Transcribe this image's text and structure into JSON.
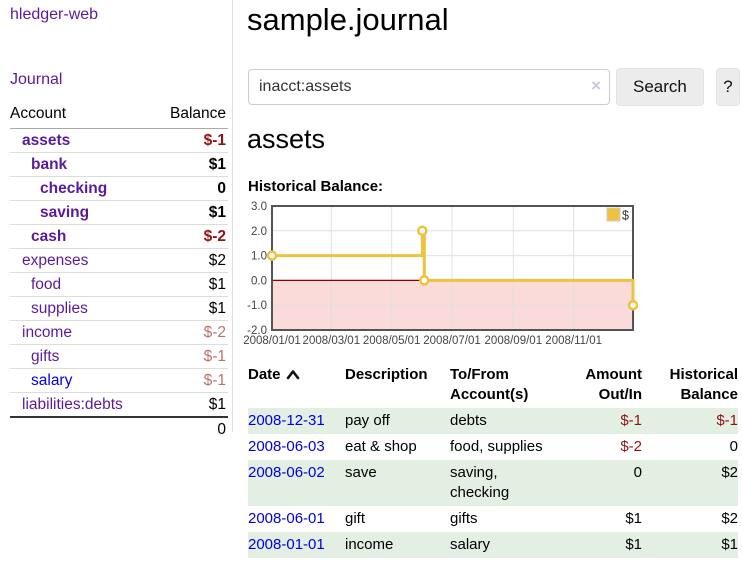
{
  "brand": "hledger-web",
  "nav": {
    "journal": "Journal"
  },
  "sidebar": {
    "account_header": "Account",
    "balance_header": "Balance",
    "accounts": [
      {
        "name": "assets",
        "balance": "$-1"
      },
      {
        "name": "bank",
        "balance": "$1"
      },
      {
        "name": "checking",
        "balance": "0"
      },
      {
        "name": "saving",
        "balance": "$1"
      },
      {
        "name": "cash",
        "balance": "$-2"
      },
      {
        "name": "expenses",
        "balance": "$2"
      },
      {
        "name": "food",
        "balance": "$1"
      },
      {
        "name": "supplies",
        "balance": "$1"
      },
      {
        "name": "income",
        "balance": "$-2"
      },
      {
        "name": "gifts",
        "balance": "$-1"
      },
      {
        "name": "salary",
        "balance": "$-1"
      },
      {
        "name": "liabilities:debts",
        "balance": "$1"
      }
    ],
    "total": "0"
  },
  "header": {
    "title": "sample.journal"
  },
  "search": {
    "value": "inacct:assets",
    "clear_icon": "×",
    "search_label": "Search",
    "help_label": "?"
  },
  "account_page": {
    "heading": "assets",
    "chart_title": "Historical Balance:"
  },
  "chart_data": {
    "type": "line",
    "title": "Historical Balance:",
    "step": true,
    "legend_position": "top-right",
    "grid": true,
    "ylim": [
      -2,
      3
    ],
    "xrange_days": [
      0,
      365
    ],
    "series": [
      {
        "name": "$",
        "color": "#EDC240",
        "points": [
          {
            "date": "2008-01-01",
            "day": 0,
            "value": 1
          },
          {
            "date": "2008-06-01",
            "day": 152,
            "value": 2
          },
          {
            "date": "2008-06-03",
            "day": 154,
            "value": 0
          },
          {
            "date": "2008-12-31",
            "day": 365,
            "value": -1
          }
        ]
      }
    ],
    "xticks": [
      {
        "day": 0,
        "label": "2008/01/01"
      },
      {
        "day": 60,
        "label": "2008/03/01"
      },
      {
        "day": 121,
        "label": "2008/05/01"
      },
      {
        "day": 182,
        "label": "2008/07/01"
      },
      {
        "day": 244,
        "label": "2008/09/01"
      },
      {
        "day": 305,
        "label": "2008/11/01"
      }
    ],
    "yticks": [
      {
        "value": 3,
        "label": "3.0"
      },
      {
        "value": 2,
        "label": "2.0"
      },
      {
        "value": 1,
        "label": "1.0"
      },
      {
        "value": 0,
        "label": "0.0"
      },
      {
        "value": -1,
        "label": "-1.0"
      },
      {
        "value": -2,
        "label": "-2.0"
      }
    ],
    "colors": {
      "line": "#EDC240",
      "marker_fill": "#ffffff",
      "negative_region_fill": "#fbdada",
      "zero_line": "#8b0000",
      "plot_border": "#545454",
      "grid": "#e0e0e0",
      "tick_text": "#444444",
      "legend_border": "#cccccc"
    }
  },
  "register": {
    "headers": {
      "date": "Date",
      "description": "Description",
      "tofrom": "To/From\nAccount(s)",
      "amount": "Amount\nOut/In",
      "balance": "Historical\nBalance"
    },
    "rows": [
      {
        "date": "2008-12-31",
        "description": "pay off",
        "tofrom": "debts",
        "amount": "$-1",
        "balance": "$-1"
      },
      {
        "date": "2008-06-03",
        "description": "eat & shop",
        "tofrom": "food, supplies",
        "amount": "$-2",
        "balance": "0"
      },
      {
        "date": "2008-06-02",
        "description": "save",
        "tofrom": "saving,\nchecking",
        "amount": "0",
        "balance": "$2"
      },
      {
        "date": "2008-06-01",
        "description": "gift",
        "tofrom": "gifts",
        "amount": "$1",
        "balance": "$2"
      },
      {
        "date": "2008-01-01",
        "description": "income",
        "tofrom": "salary",
        "amount": "$1",
        "balance": "$1"
      }
    ]
  }
}
